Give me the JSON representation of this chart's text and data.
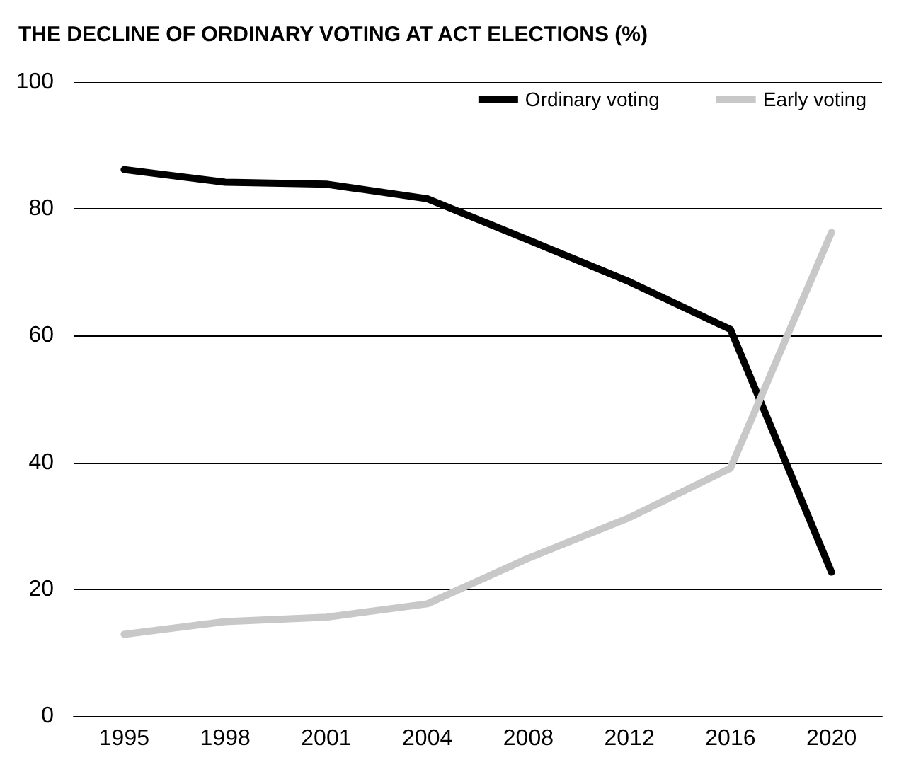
{
  "chart_data": {
    "type": "line",
    "title": "THE DECLINE OF ORDINARY VOTING AT ACT ELECTIONS (%)",
    "categories": [
      "1995",
      "1998",
      "2001",
      "2004",
      "2008",
      "2012",
      "2016",
      "2020"
    ],
    "series": [
      {
        "name": "Ordinary voting",
        "color": "#000000",
        "values": [
          86.2,
          84.2,
          83.9,
          81.6,
          75.1,
          68.5,
          61.0,
          22.7
        ]
      },
      {
        "name": "Early voting",
        "color": "#c8c8c8",
        "values": [
          12.9,
          14.9,
          15.6,
          17.7,
          24.9,
          31.3,
          39.1,
          76.3
        ]
      }
    ],
    "ylim": [
      0,
      100
    ],
    "yticks": [
      0,
      20,
      40,
      60,
      80,
      100
    ],
    "grid": "y",
    "legend": "top right",
    "marker": "none",
    "line_style": "solid"
  }
}
